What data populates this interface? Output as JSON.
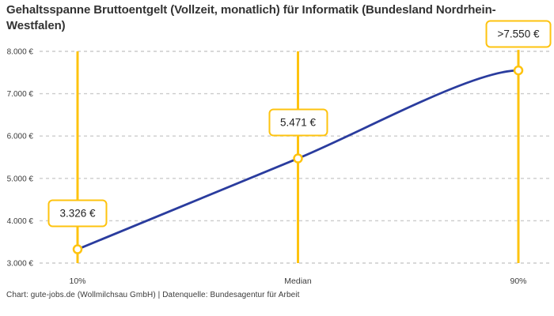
{
  "page": {
    "title": "Gehaltsspanne Bruttoentgelt (Vollzeit, monatlich) für Informatik (Bundesland Nordrhein-Westfalen)",
    "footer": "Chart: gute-jobs.de (Wollmilchsau GmbH) | Datenquelle: Bundesagentur für Arbeit"
  },
  "colors": {
    "accent_yellow": "#fec30f",
    "line_blue": "#2a3c9e",
    "grid_gray": "#cccccc",
    "text_dark": "#333333"
  },
  "chart_data": {
    "type": "line",
    "title": "Gehaltsspanne Bruttoentgelt (Vollzeit, monatlich) für Informatik (Bundesland Nordrhein-Westfalen)",
    "categories": [
      "10%",
      "Median",
      "90%"
    ],
    "values": [
      3326,
      5471,
      7550
    ],
    "point_labels": [
      "3.326 €",
      "5.471 €",
      ">7.550 €"
    ],
    "ylim": [
      3000,
      8000
    ],
    "ytick_values": [
      3000,
      4000,
      5000,
      6000,
      7000,
      8000
    ],
    "ytick_labels": [
      "3.000 €",
      "4.000 €",
      "5.000 €",
      "6.000 €",
      "7.000 €",
      "8.000 €"
    ],
    "xlabel": "",
    "ylabel": "",
    "grid": "horizontal-dashed",
    "legend": "none",
    "marker_style": "open-circle",
    "annotations": "vertical yellow line at each category with boxed value label"
  }
}
